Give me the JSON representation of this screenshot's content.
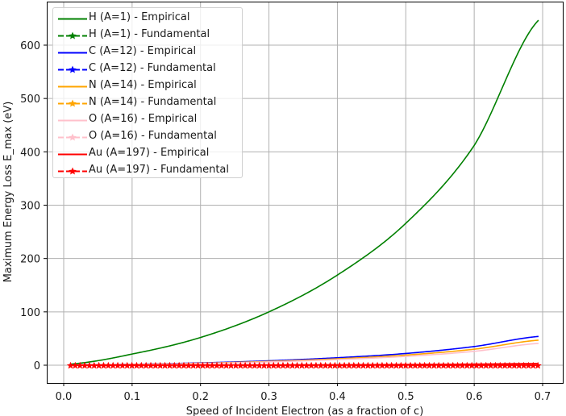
{
  "chart_data": {
    "type": "line",
    "title": "",
    "xlabel": "Speed of Incident Electron (as a fraction of c)",
    "ylabel": "Maximum Energy Loss E_max (eV)",
    "xlim": [
      -0.025,
      0.73
    ],
    "ylim": [
      -32,
      680
    ],
    "xticks": [
      "0.0",
      "0.1",
      "0.2",
      "0.3",
      "0.4",
      "0.5",
      "0.6",
      "0.7"
    ],
    "yticks": [
      "0",
      "100",
      "200",
      "300",
      "400",
      "500",
      "600"
    ],
    "grid": true,
    "legend_position": "upper left",
    "x": [
      0.01,
      0.1,
      0.2,
      0.3,
      0.4,
      0.5,
      0.6,
      0.695
    ],
    "series": [
      {
        "name": "H (A=1) - Empirical",
        "color": "#008000",
        "style": "solid",
        "values": [
          2,
          21,
          52,
          100,
          169,
          266,
          412,
          648
        ]
      },
      {
        "name": "H (A=1) - Fundamental",
        "color": "#008000",
        "style": "dashed-star",
        "values": [
          0,
          0,
          0,
          0,
          0,
          0,
          0,
          0
        ]
      },
      {
        "name": "C (A=12) - Empirical",
        "color": "#0000ff",
        "style": "solid",
        "values": [
          0.2,
          1.7,
          4.3,
          8.3,
          14,
          22,
          35,
          54
        ]
      },
      {
        "name": "C (A=12) - Fundamental",
        "color": "#0000ff",
        "style": "dashed-star",
        "values": [
          0,
          0,
          0,
          0,
          0,
          0,
          0,
          0
        ]
      },
      {
        "name": "N (A=14) - Empirical",
        "color": "#ffa500",
        "style": "solid",
        "values": [
          0.1,
          1.5,
          3.7,
          7.1,
          12,
          19,
          30,
          47
        ]
      },
      {
        "name": "N (A=14) - Fundamental",
        "color": "#ffa500",
        "style": "dashed-star",
        "values": [
          0,
          0,
          0,
          0,
          0,
          0,
          0,
          0
        ]
      },
      {
        "name": "O (A=16) - Empirical",
        "color": "#ffc0cb",
        "style": "solid",
        "values": [
          0.1,
          1.3,
          3.3,
          6.2,
          10.5,
          16.6,
          26,
          41
        ]
      },
      {
        "name": "O (A=16) - Fundamental",
        "color": "#ffc0cb",
        "style": "dashed-star",
        "values": [
          0,
          0,
          0,
          0,
          0,
          0,
          0,
          0
        ]
      },
      {
        "name": "Au (A=197) - Empirical",
        "color": "#ff0000",
        "style": "solid",
        "values": [
          0,
          0.1,
          0.3,
          0.5,
          0.9,
          1.4,
          2.1,
          3.3
        ]
      },
      {
        "name": "Au (A=197) - Fundamental",
        "color": "#ff0000",
        "style": "dashed-star",
        "values": [
          0,
          0,
          0,
          0,
          0,
          0,
          0,
          0
        ]
      }
    ]
  },
  "legend": [
    {
      "label": "H (A=1) - Empirical",
      "color": "#008000",
      "marker": false,
      "faint": false
    },
    {
      "label": "H (A=1) - Fundamental",
      "color": "#008000",
      "marker": true,
      "faint": false
    },
    {
      "label": "C (A=12) - Empirical",
      "color": "#0000ff",
      "marker": false,
      "faint": false
    },
    {
      "label": "C (A=12) - Fundamental",
      "color": "#0000ff",
      "marker": true,
      "faint": false
    },
    {
      "label": "N (A=14) - Empirical",
      "color": "#ffa500",
      "marker": false,
      "faint": false
    },
    {
      "label": "N (A=14) - Fundamental",
      "color": "#ffa500",
      "marker": true,
      "faint": false
    },
    {
      "label": "O (A=16) - Empirical",
      "color": "#ffc0cb",
      "marker": false,
      "faint": false
    },
    {
      "label": "O (A=16) - Fundamental",
      "color": "#ffc0cb",
      "marker": true,
      "faint": false
    },
    {
      "label": "Au (A=197) - Empirical",
      "color": "#ff0000",
      "marker": false,
      "faint": false
    },
    {
      "label": "Au (A=197) - Fundamental",
      "color": "#ff0000",
      "marker": true,
      "faint": false
    }
  ]
}
